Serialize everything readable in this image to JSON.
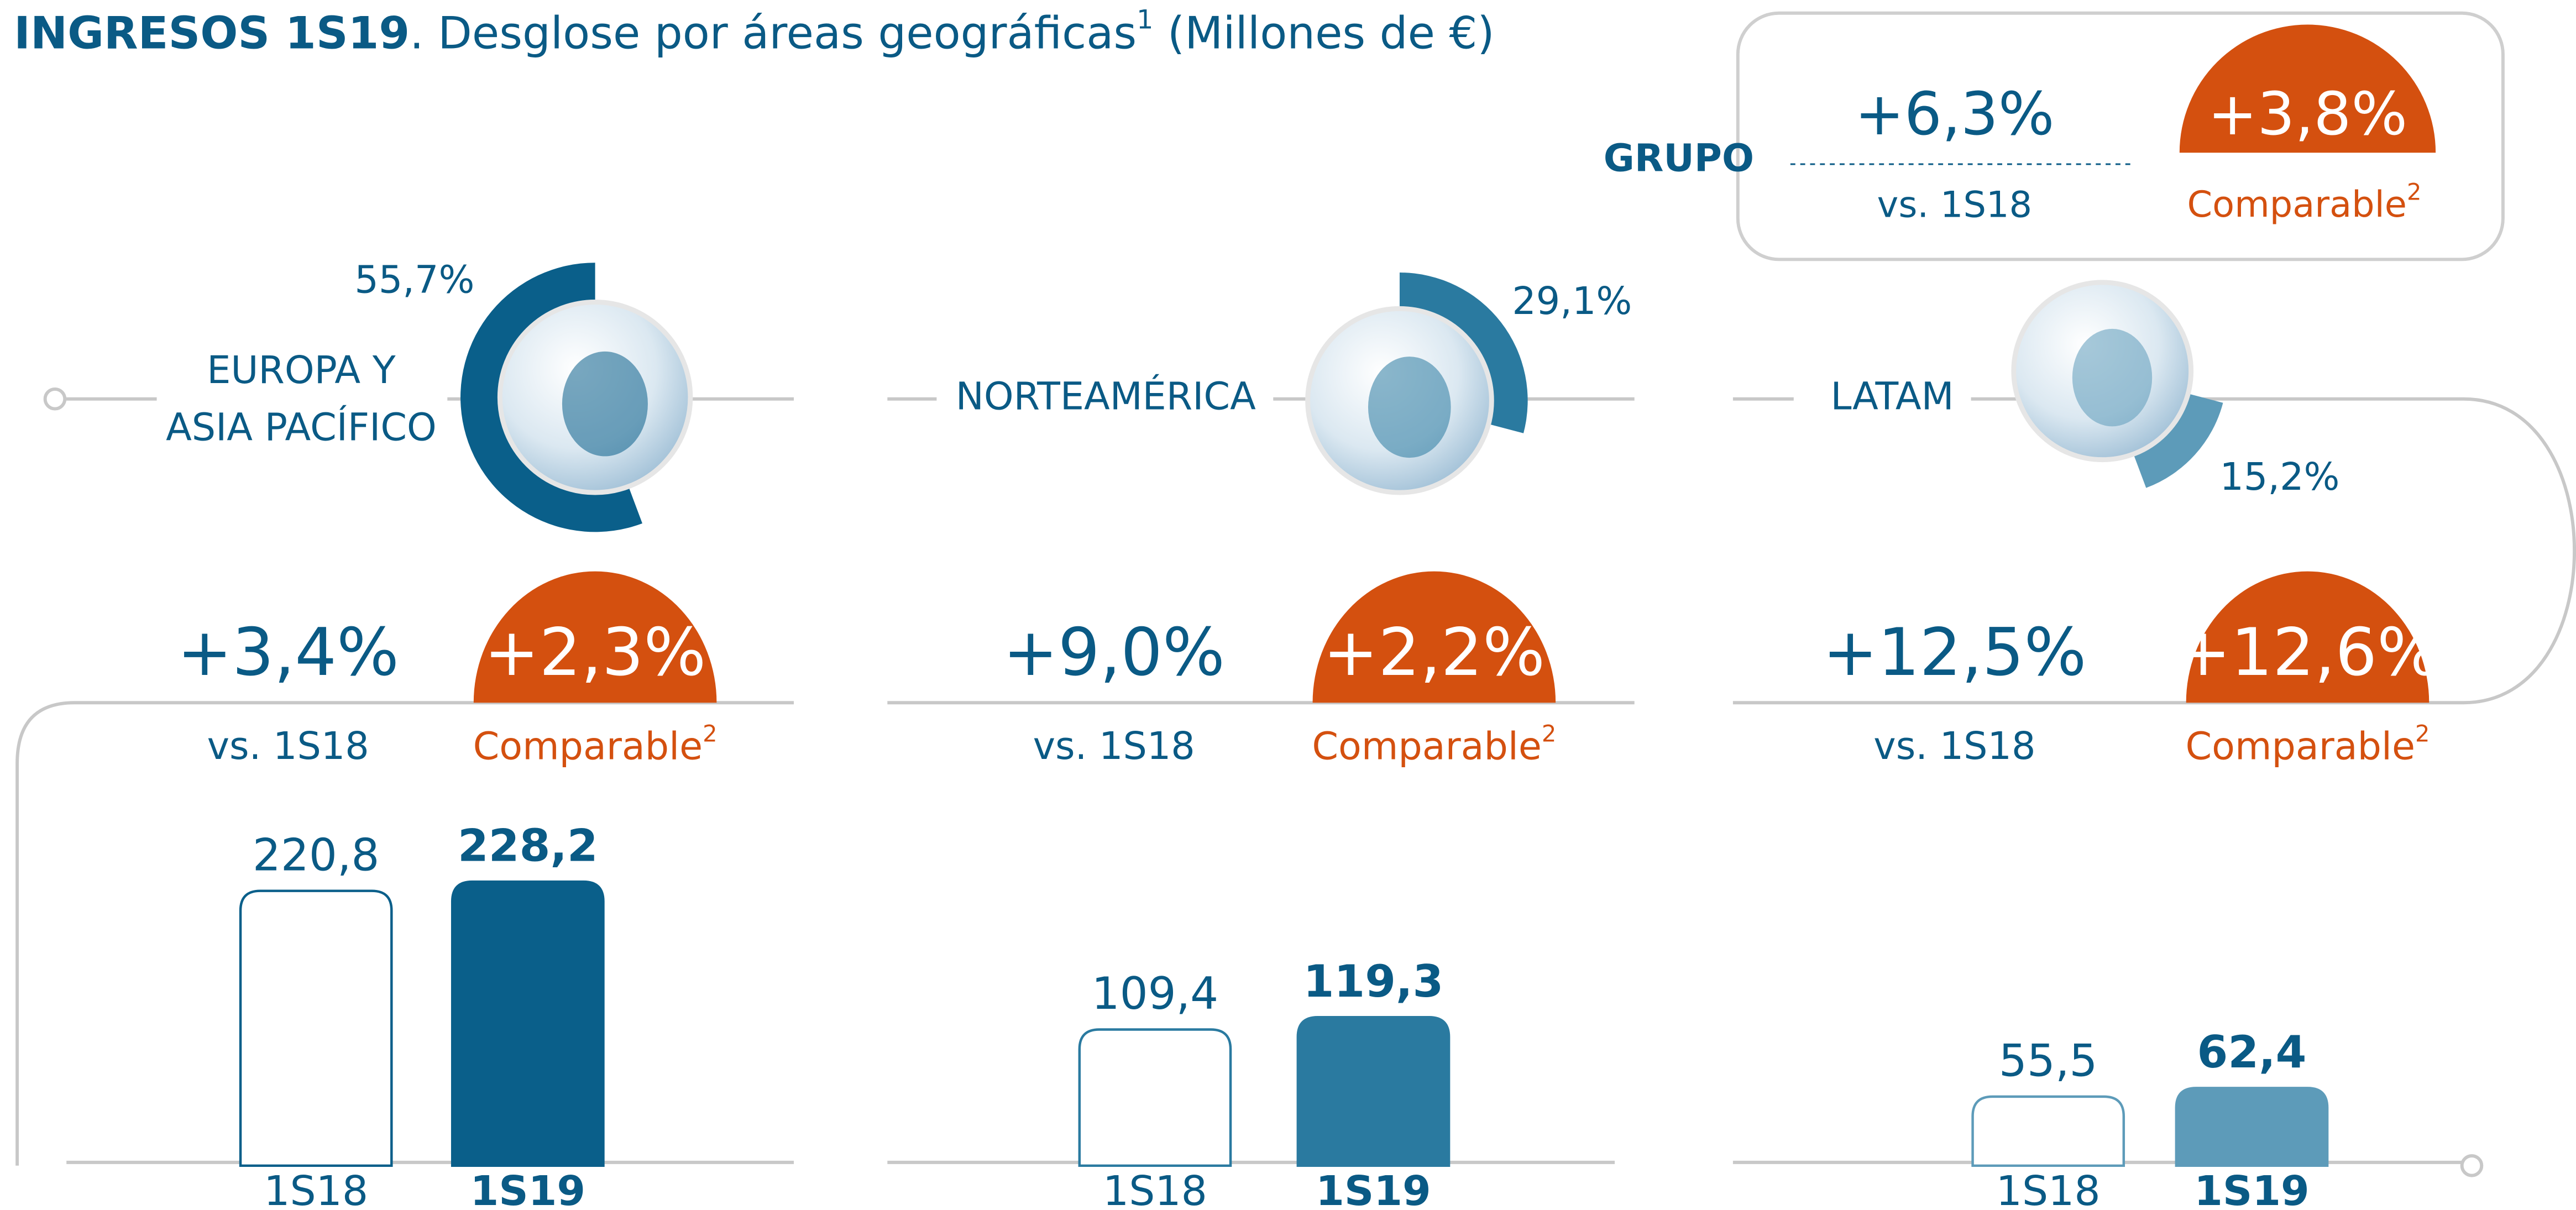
{
  "header": {
    "title": "INGRESOS 1S19",
    "subtitle": ". Desglose por áreas geográficas",
    "note_ref": "1",
    "unit": " (Millones de €)"
  },
  "labels": {
    "vs": "vs. 1S18",
    "comparable": "Comparable",
    "comparable_note": "2"
  },
  "group": {
    "name": "GRUPO",
    "growth": "+6,3%",
    "growth_comparable": "+3,8%"
  },
  "chart_data": [
    {
      "type": "bar",
      "title_lines": [
        "EUROPA Y",
        "ASIA PACÍFICO"
      ],
      "share": 55.7,
      "share_label": "55,7%",
      "growth": "+3,4%",
      "growth_comparable": "+2,3%",
      "categories": [
        "1S18",
        "1S19"
      ],
      "values": [
        220.8,
        228.2
      ],
      "value_labels": [
        "220,8",
        "228,2"
      ],
      "color": "#0a5f8a"
    },
    {
      "type": "bar",
      "title_lines": [
        "NORTEAMÉRICA"
      ],
      "share": 29.1,
      "share_label": "29,1%",
      "growth": "+9,0%",
      "growth_comparable": "+2,2%",
      "categories": [
        "1S18",
        "1S19"
      ],
      "values": [
        109.4,
        119.3
      ],
      "value_labels": [
        "109,4",
        "119,3"
      ],
      "color": "#2a7aa0"
    },
    {
      "type": "bar",
      "title_lines": [
        "LATAM"
      ],
      "share": 15.2,
      "share_label": "15,2%",
      "growth": "+12,5%",
      "growth_comparable": "+12,6%",
      "categories": [
        "1S18",
        "1S19"
      ],
      "values": [
        55.5,
        62.4
      ],
      "value_labels": [
        "55,5",
        "62,4"
      ],
      "color": "#5d9bb9"
    }
  ]
}
